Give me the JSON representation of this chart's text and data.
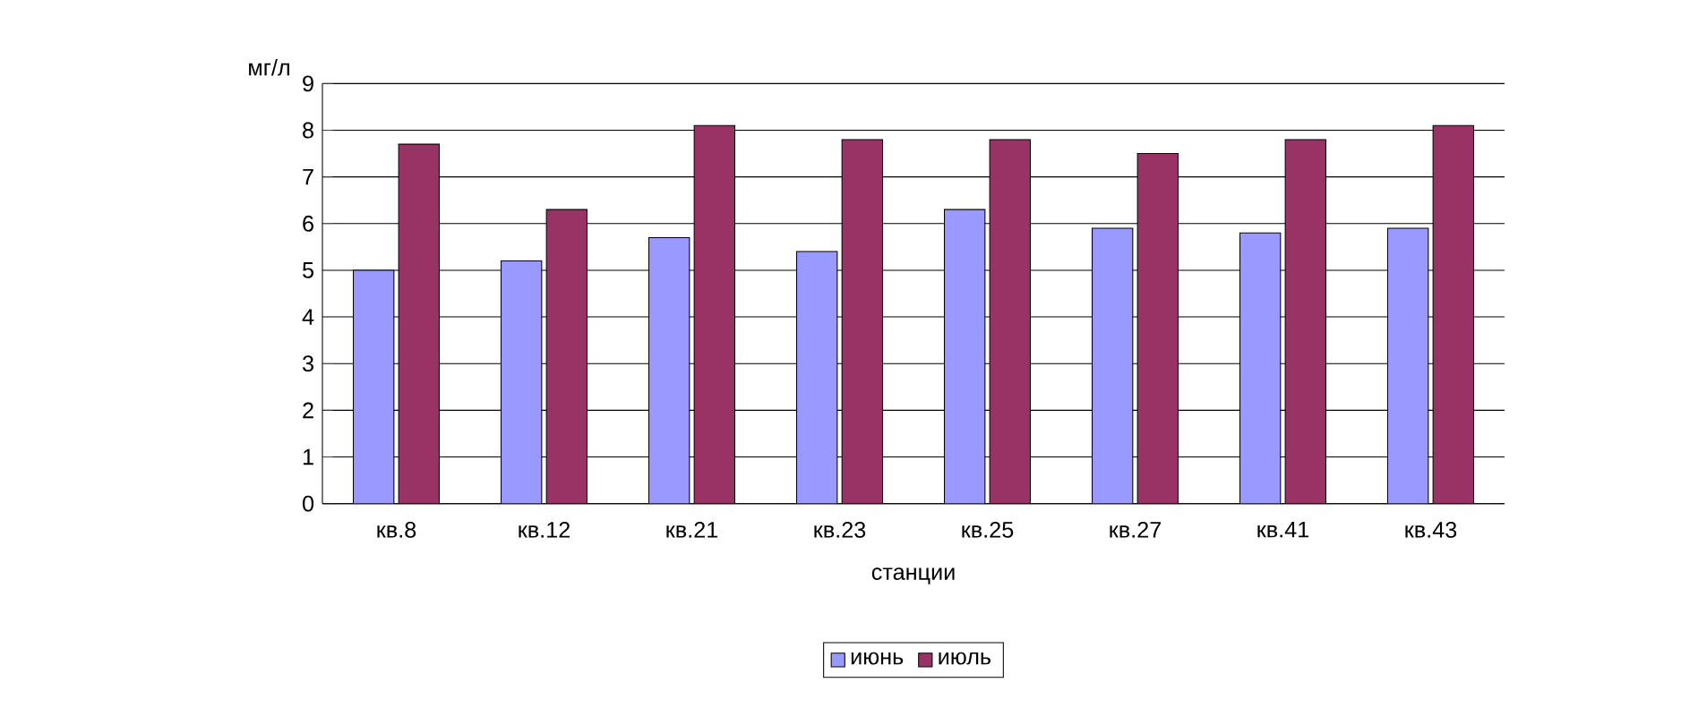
{
  "chart_data": {
    "type": "bar",
    "xlabel": "станции",
    "ylabel": "мг/л",
    "categories": [
      "кв.8",
      "кв.12",
      "кв.21",
      "кв.23",
      "кв.25",
      "кв.27",
      "кв.41",
      "кв.43"
    ],
    "series": [
      {
        "name": "июнь",
        "color": "#9999ff",
        "values": [
          5.0,
          5.2,
          5.7,
          5.4,
          6.3,
          5.9,
          5.8,
          5.9
        ]
      },
      {
        "name": "июль",
        "color": "#993366",
        "values": [
          7.7,
          6.3,
          8.1,
          7.8,
          7.8,
          7.5,
          7.8,
          8.1
        ]
      }
    ],
    "ylim": [
      0,
      9
    ],
    "yticks": [
      0,
      1,
      2,
      3,
      4,
      5,
      6,
      7,
      8,
      9
    ],
    "grid": "y",
    "legend": "bottom"
  }
}
